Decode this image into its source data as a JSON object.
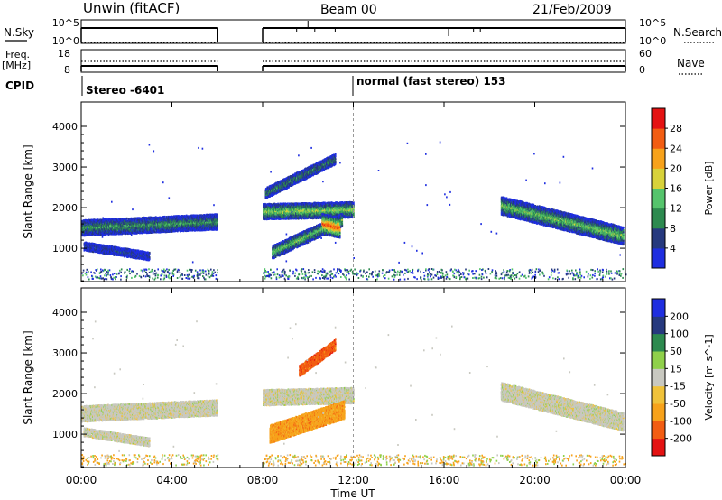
{
  "header": {
    "station": "Unwin (fitACF)",
    "beam": "Beam 00",
    "date": "21/Feb/2009"
  },
  "strips": {
    "nsky_label": "N.Sky",
    "nsky_ticks": [
      "10^5",
      "10^0"
    ],
    "nsearch_label": "N.Search",
    "nsearch_ticks": [
      "10^5",
      "10^0"
    ],
    "freq_label": "Freq.",
    "freq_unit": "[MHz]",
    "freq_ticks": [
      "18",
      "8"
    ],
    "nave_label": "Nave",
    "nave_ticks": [
      "60",
      "0"
    ],
    "cpid_label": "CPID",
    "cpid_events": [
      {
        "time_h": 0,
        "label": "Stereo -6401"
      },
      {
        "time_h": 12,
        "label": "normal (fast stereo) 153"
      }
    ]
  },
  "axes": {
    "x_label": "Time UT",
    "x_ticks": [
      "00:00",
      "04:00",
      "08:00",
      "12:00",
      "16:00",
      "20:00",
      "00:00"
    ],
    "x_tick_hours": [
      0,
      4,
      8,
      12,
      16,
      20,
      24
    ],
    "y_label": "Slant Range [km]",
    "y_ticks": [
      "1000",
      "2000",
      "3000",
      "4000"
    ],
    "y_tick_values": [
      1000,
      2000,
      3000,
      4000
    ],
    "y_range_km": [
      180,
      4600
    ],
    "x_range_h": [
      0,
      24
    ],
    "data_gap_h": [
      6,
      8
    ]
  },
  "colors": {
    "power": [
      "#1f2ee0",
      "#26397e",
      "#2d8a4f",
      "#55c46c",
      "#d8d23a",
      "#f7a21b",
      "#f25d12",
      "#e41212"
    ],
    "velocity": [
      "#e41212",
      "#f25d12",
      "#f7a21b",
      "#f0c23a",
      "#c8c8c0",
      "#8fd04a",
      "#2d8a4f",
      "#26397e",
      "#1f2ee0"
    ],
    "velocity_dominant": "#c8c8c0",
    "power_dominant": "#1f2ee0"
  },
  "chart_data": [
    {
      "type": "heatmap",
      "title": "",
      "xlabel": "Time UT",
      "ylabel": "Slant Range [km]",
      "colorbar_label": "Power [dB]",
      "colorbar_ticks": [
        "4",
        "8",
        "12",
        "16",
        "20",
        "24",
        "28"
      ],
      "xlim": [
        0,
        24
      ],
      "ylim": [
        180,
        4600
      ],
      "features": [
        {
          "t0": 0.0,
          "t1": 6.0,
          "r_start": 1500,
          "r_end": 1650,
          "half_width": 180,
          "level": 0.35
        },
        {
          "t0": 0.1,
          "t1": 3.0,
          "r_start": 1050,
          "r_end": 800,
          "half_width": 90,
          "level": 0.15
        },
        {
          "t0": 8.0,
          "t1": 12.0,
          "r_start": 1900,
          "r_end": 1950,
          "half_width": 180,
          "level": 0.5
        },
        {
          "t0": 8.1,
          "t1": 11.2,
          "r_start": 2350,
          "r_end": 3200,
          "half_width": 110,
          "level": 0.3
        },
        {
          "t0": 8.4,
          "t1": 11.5,
          "r_start": 900,
          "r_end": 1700,
          "half_width": 150,
          "level": 0.45
        },
        {
          "t0": 10.6,
          "t1": 11.4,
          "r_start": 1600,
          "r_end": 1500,
          "half_width": 250,
          "level": 0.85
        },
        {
          "t0": 18.5,
          "t1": 23.9,
          "r_start": 2050,
          "r_end": 1300,
          "half_width": 200,
          "level": 0.45
        }
      ]
    },
    {
      "type": "heatmap",
      "title": "",
      "xlabel": "Time UT",
      "ylabel": "Slant Range [km]",
      "colorbar_label": "Velocity [m s^-1]",
      "colorbar_ticks": [
        "-200",
        "-100",
        "-50",
        "-15",
        "15",
        "50",
        "100",
        "200"
      ],
      "xlim": [
        0,
        24
      ],
      "ylim": [
        180,
        4600
      ],
      "features": [
        {
          "t0": 0.0,
          "t1": 6.0,
          "r_start": 1500,
          "r_end": 1650,
          "half_width": 180,
          "level": 4
        },
        {
          "t0": 0.1,
          "t1": 3.0,
          "r_start": 1050,
          "r_end": 800,
          "half_width": 90,
          "level": 4
        },
        {
          "t0": 8.0,
          "t1": 12.0,
          "r_start": 1900,
          "r_end": 1950,
          "half_width": 180,
          "level": 4
        },
        {
          "t0": 9.6,
          "t1": 11.2,
          "r_start": 2550,
          "r_end": 3200,
          "half_width": 110,
          "level": 1
        },
        {
          "t0": 8.3,
          "t1": 11.6,
          "r_start": 1000,
          "r_end": 1600,
          "half_width": 200,
          "level": 2
        },
        {
          "t0": 18.5,
          "t1": 23.9,
          "r_start": 2050,
          "r_end": 1300,
          "half_width": 200,
          "level": 4
        }
      ]
    }
  ]
}
